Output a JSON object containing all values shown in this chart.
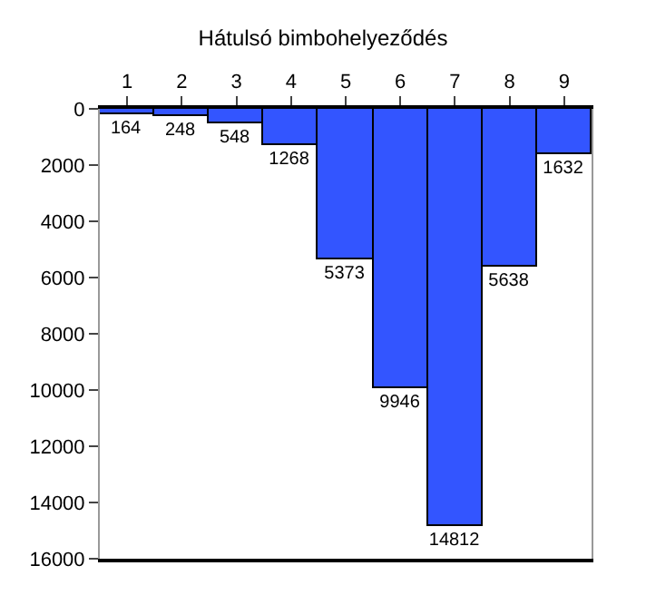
{
  "chart_data": {
    "type": "bar",
    "title": "Hátulsó bimbohelyeződés",
    "categories": [
      "1",
      "2",
      "3",
      "4",
      "5",
      "6",
      "7",
      "8",
      "9"
    ],
    "values": [
      164,
      248,
      548,
      1268,
      5373,
      9946,
      14812,
      5638,
      1632
    ],
    "color": "#3355ff",
    "ylim": [
      16000,
      0
    ],
    "yticks": [
      0,
      2000,
      4000,
      6000,
      8000,
      10000,
      12000,
      14000,
      16000
    ],
    "legend": false,
    "data_labels": true
  }
}
